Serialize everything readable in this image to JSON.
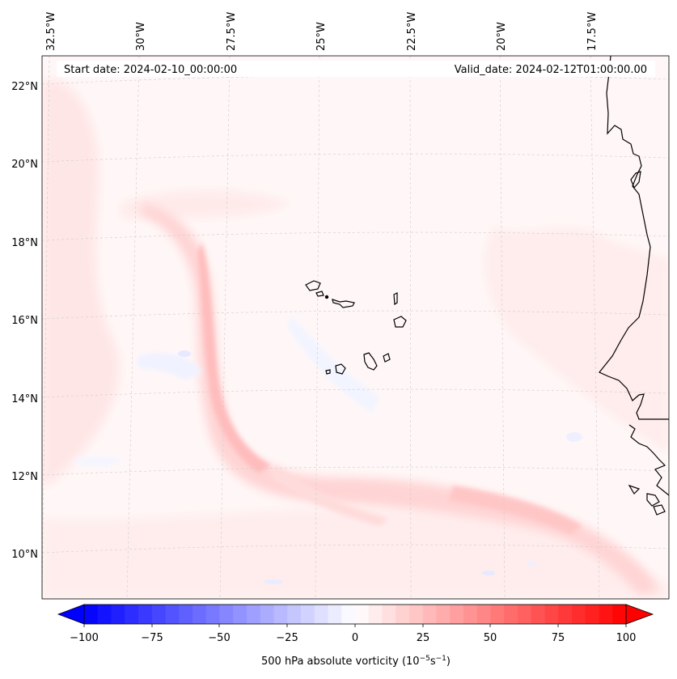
{
  "header": {
    "start_date": "Start date: 2024-02-10_00:00:00",
    "valid_date": "Valid_date: 2024-02-12T01:00:00.00"
  },
  "map": {
    "field": "500 hPa absolute vorticity",
    "region": "Eastern tropical North Atlantic, Cape Verde islands and West African coast",
    "longitude_labels": [
      "32.5°W",
      "30°W",
      "27.5°W",
      "25°W",
      "22.5°W",
      "20°W",
      "17.5°W"
    ],
    "latitude_labels": [
      "22°N",
      "20°N",
      "18°N",
      "16°N",
      "14°N",
      "12°N",
      "10°N"
    ]
  },
  "colorbar": {
    "label_main": "500 hPa absolute vorticity (10",
    "exp1": "−5",
    "mid": "s",
    "exp2": "−1",
    "close": ")",
    "vmin": -100,
    "vmax": 100,
    "ticks": [
      "−100",
      "−75",
      "−50",
      "−25",
      "0",
      "25",
      "50",
      "75",
      "100"
    ],
    "cmap": "bwr",
    "color_low": "#0000ff",
    "color_mid": "#ffffff",
    "color_high": "#ff0000"
  }
}
